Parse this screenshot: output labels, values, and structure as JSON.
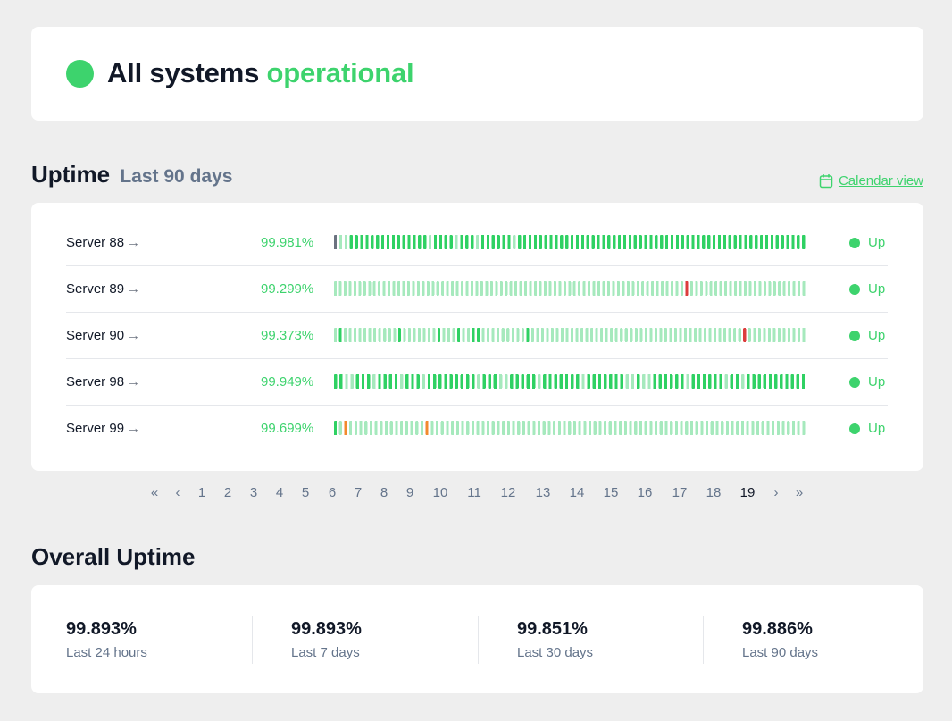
{
  "colors": {
    "green": "#3dd36d",
    "bar_light": "#a6e9bd",
    "bar_strong": "#2fd163",
    "bar_gray": "#6b7280",
    "bar_red": "#dc3d3d",
    "bar_orange": "#f28a2e",
    "link": "#3dd36d"
  },
  "status": {
    "text_prefix": "All systems",
    "text_accent": "operational",
    "dot_icon": "status-dot-icon"
  },
  "uptime_section": {
    "title": "Uptime",
    "subtitle": "Last 90 days",
    "calendar_link": "Calendar view",
    "calendar_icon": "calendar-icon"
  },
  "servers": [
    {
      "name": "Server 88",
      "arrow": "→",
      "uptime": "99.981%",
      "status": "Up",
      "bars": "gllssssssssssssssslsssslssslsssssslsssssssssssssssssssssssssssssssssssssssssssssssssssssss"
    },
    {
      "name": "Server 89",
      "arrow": "→",
      "uptime": "99.299%",
      "status": "Up",
      "bars": "llllllllllllllllllllllllllllllllllllllllllllllllllllllllllllllllllllllllrllllllllllllllllllllllll"
    },
    {
      "name": "Server 90",
      "arrow": "→",
      "uptime": "99.373%",
      "status": "Up",
      "bars": "lslllllllllllslllllllslllsllsslllllllllslllllllllllllllllllllllllllllllllllllllllllrllllllllllll"
    },
    {
      "name": "Server 98",
      "arrow": "→",
      "uptime": "99.949%",
      "status": "Up",
      "bars": "ssllssslsssslssslssssssssslsssllssssslssssssslsssssssllsllsssssslsssssslsslsssssssssss"
    },
    {
      "name": "Server 99",
      "arrow": "→",
      "uptime": "99.699%",
      "status": "Up",
      "bars": "slolllllllllllllllollllllllllllllllllllllllllllllllllllllllllllllllllllllllllllllllllllllllll"
    }
  ],
  "pagination": {
    "first": "«",
    "prev": "‹",
    "pages": [
      "1",
      "2",
      "3",
      "4",
      "5",
      "6",
      "7",
      "8",
      "9",
      "10",
      "11",
      "12",
      "13",
      "14",
      "15",
      "16",
      "17",
      "18",
      "19"
    ],
    "current": "19",
    "next": "›",
    "last": "»"
  },
  "overall": {
    "title": "Overall Uptime",
    "stats": [
      {
        "value": "99.893%",
        "label": "Last 24 hours"
      },
      {
        "value": "99.893%",
        "label": "Last 7 days"
      },
      {
        "value": "99.851%",
        "label": "Last 30 days"
      },
      {
        "value": "99.886%",
        "label": "Last 90 days"
      }
    ]
  }
}
